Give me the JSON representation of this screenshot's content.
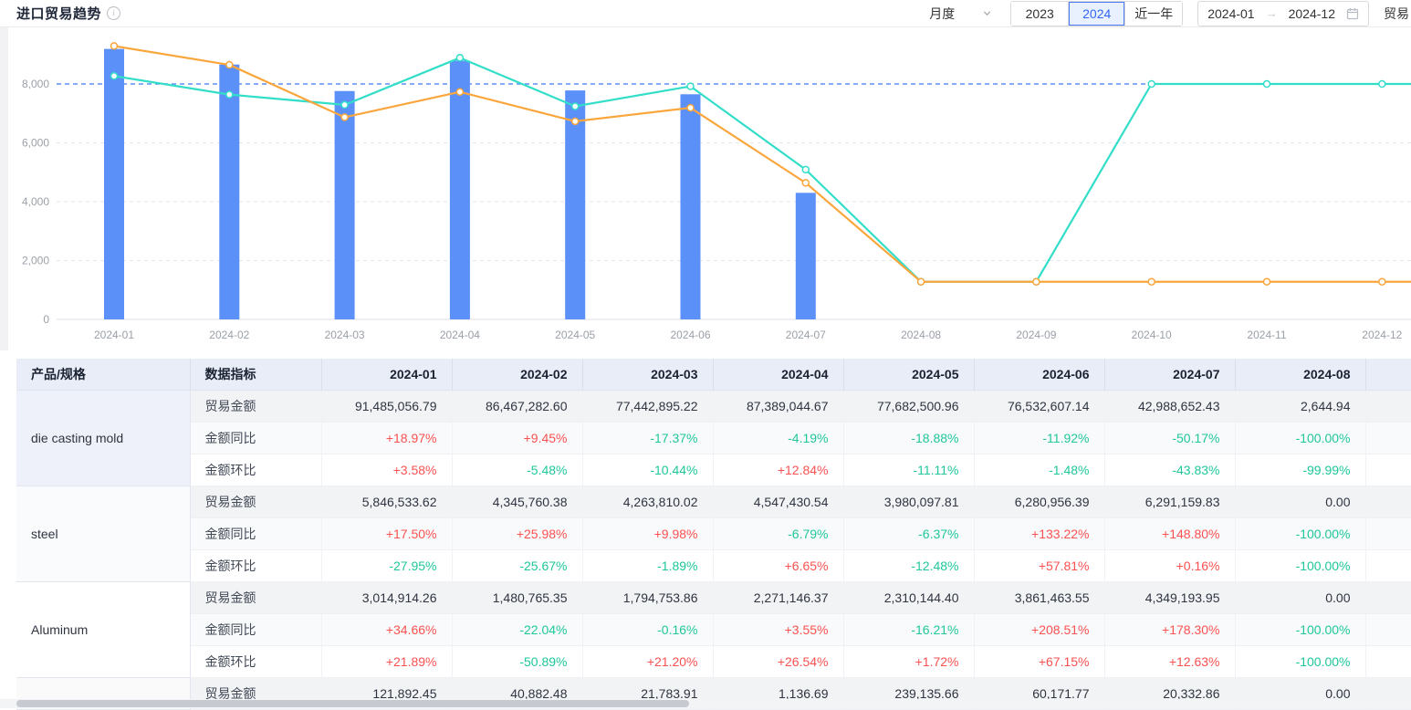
{
  "header": {
    "title": "进口贸易趋势",
    "period_select": {
      "value": "月度"
    },
    "year_buttons": [
      "2023",
      "2024",
      "近一年"
    ],
    "active_year": "2024",
    "date_range": {
      "start": "2024-01",
      "end": "2024-12"
    },
    "trailing_label": "贸易"
  },
  "chart_data": {
    "type": "bar+line",
    "categories": [
      "2024-01",
      "2024-02",
      "2024-03",
      "2024-04",
      "2024-05",
      "2024-06",
      "2024-07",
      "2024-08",
      "2024-09",
      "2024-10",
      "2024-11",
      "2024-12"
    ],
    "series": [
      {
        "name": "bar-series",
        "type": "bar",
        "color": "#5B90F9",
        "values": [
          9190,
          8660,
          7760,
          8790,
          7780,
          7650,
          4300,
          null,
          null,
          null,
          null,
          null
        ]
      },
      {
        "name": "line-teal",
        "type": "line",
        "color": "#33DEC9",
        "values": [
          8270,
          7640,
          7290,
          8890,
          7240,
          7920,
          5090,
          1280,
          1280,
          8000,
          8000,
          8000
        ]
      },
      {
        "name": "line-orange",
        "type": "line",
        "color": "#FAA63C",
        "values": [
          9290,
          8650,
          6870,
          7730,
          6730,
          7190,
          4640,
          1280,
          1280,
          1280,
          1280,
          1280
        ]
      }
    ],
    "yticks": [
      0,
      2000,
      4000,
      6000,
      8000
    ],
    "ref_line": {
      "value": 8000,
      "color": "#5C8DF6"
    },
    "ylim": [
      0,
      9900
    ],
    "grid": "dashed",
    "legend": "none",
    "title": "",
    "xlabel": "",
    "ylabel": ""
  },
  "table": {
    "product_header": "产品/规格",
    "metric_header": "数据指标",
    "month_headers": [
      "2024-01",
      "2024-02",
      "2024-03",
      "2024-04",
      "2024-05",
      "2024-06",
      "2024-07",
      "2024-08"
    ],
    "metric_labels": {
      "amount": "贸易金额",
      "yoy": "金额同比",
      "mom": "金额环比"
    },
    "colors": {
      "up": "#FA5151",
      "down": "#1FC79B"
    },
    "groups": [
      {
        "product": "die casting mold",
        "rows": [
          "amount",
          "yoy",
          "mom"
        ],
        "amount": [
          "91,485,056.79",
          "86,467,282.60",
          "77,442,895.22",
          "87,389,044.67",
          "77,682,500.96",
          "76,532,607.14",
          "42,988,652.43",
          "2,644.94"
        ],
        "yoy": [
          "+18.97%",
          "+9.45%",
          "-17.37%",
          "-4.19%",
          "-18.88%",
          "-11.92%",
          "-50.17%",
          "-100.00%"
        ],
        "mom": [
          "+3.58%",
          "-5.48%",
          "-10.44%",
          "+12.84%",
          "-11.11%",
          "-1.48%",
          "-43.83%",
          "-99.99%"
        ]
      },
      {
        "product": "steel",
        "rows": [
          "amount",
          "yoy",
          "mom"
        ],
        "amount": [
          "5,846,533.62",
          "4,345,760.38",
          "4,263,810.02",
          "4,547,430.54",
          "3,980,097.81",
          "6,280,956.39",
          "6,291,159.83",
          "0.00"
        ],
        "yoy": [
          "+17.50%",
          "+25.98%",
          "+9.98%",
          "-6.79%",
          "-6.37%",
          "+133.22%",
          "+148.80%",
          "-100.00%"
        ],
        "mom": [
          "-27.95%",
          "-25.67%",
          "-1.89%",
          "+6.65%",
          "-12.48%",
          "+57.81%",
          "+0.16%",
          "-100.00%"
        ]
      },
      {
        "product": "Aluminum",
        "rows": [
          "amount",
          "yoy",
          "mom"
        ],
        "amount": [
          "3,014,914.26",
          "1,480,765.35",
          "1,794,753.86",
          "2,271,146.37",
          "2,310,144.40",
          "3,861,463.55",
          "4,349,193.95",
          "0.00"
        ],
        "yoy": [
          "+34.66%",
          "-22.04%",
          "-0.16%",
          "+3.55%",
          "-16.21%",
          "+208.51%",
          "+178.30%",
          "-100.00%"
        ],
        "mom": [
          "+21.89%",
          "-50.89%",
          "+21.20%",
          "+26.54%",
          "+1.72%",
          "+67.15%",
          "+12.63%",
          "-100.00%"
        ]
      },
      {
        "product": "",
        "rows": [
          "amount"
        ],
        "amount": [
          "121,892.45",
          "40,882.48",
          "21,783.91",
          "1,136.69",
          "239,135.66",
          "60,171.77",
          "20,332.86",
          "0.00"
        ]
      }
    ]
  }
}
